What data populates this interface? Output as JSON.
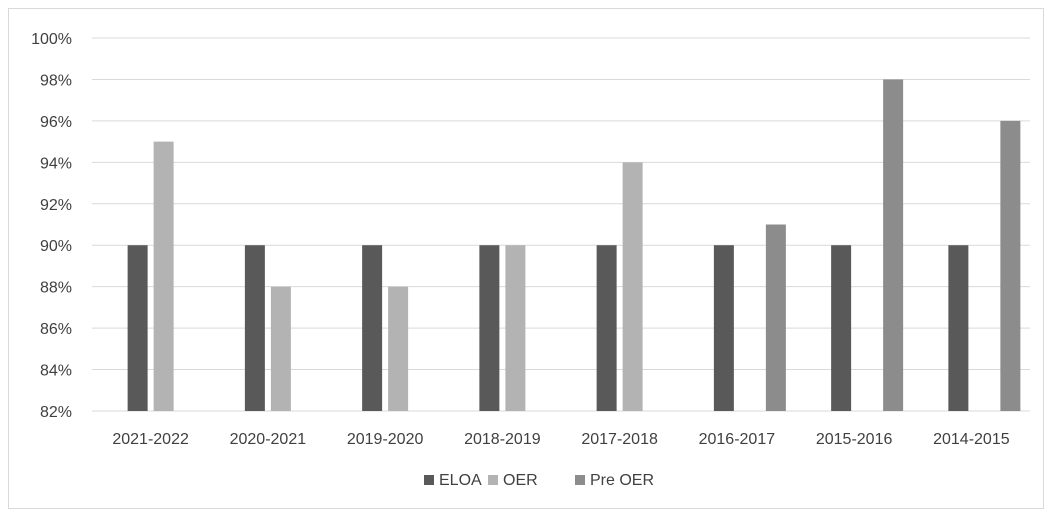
{
  "chart_data": {
    "type": "bar",
    "categories": [
      "2021-2022",
      "2020-2021",
      "2019-2020",
      "2018-2019",
      "2017-2018",
      "2016-2017",
      "2015-2016",
      "2014-2015"
    ],
    "series": [
      {
        "name": "ELOA",
        "color": "#595959",
        "values": [
          90,
          90,
          90,
          90,
          90,
          90,
          90,
          90
        ]
      },
      {
        "name": "OER",
        "color": "#b3b3b3",
        "values": [
          95,
          88,
          88,
          90,
          94,
          null,
          null,
          null
        ]
      },
      {
        "name": "Pre OER",
        "color": "#8c8c8c",
        "values": [
          null,
          null,
          null,
          null,
          null,
          91,
          98,
          96
        ]
      }
    ],
    "ylim": [
      82,
      100
    ],
    "yticks": [
      "82%",
      "84%",
      "86%",
      "88%",
      "90%",
      "92%",
      "94%",
      "96%",
      "98%",
      "100%"
    ],
    "grid": true,
    "legend_position": "bottom",
    "title": "",
    "xlabel": "",
    "ylabel": ""
  }
}
